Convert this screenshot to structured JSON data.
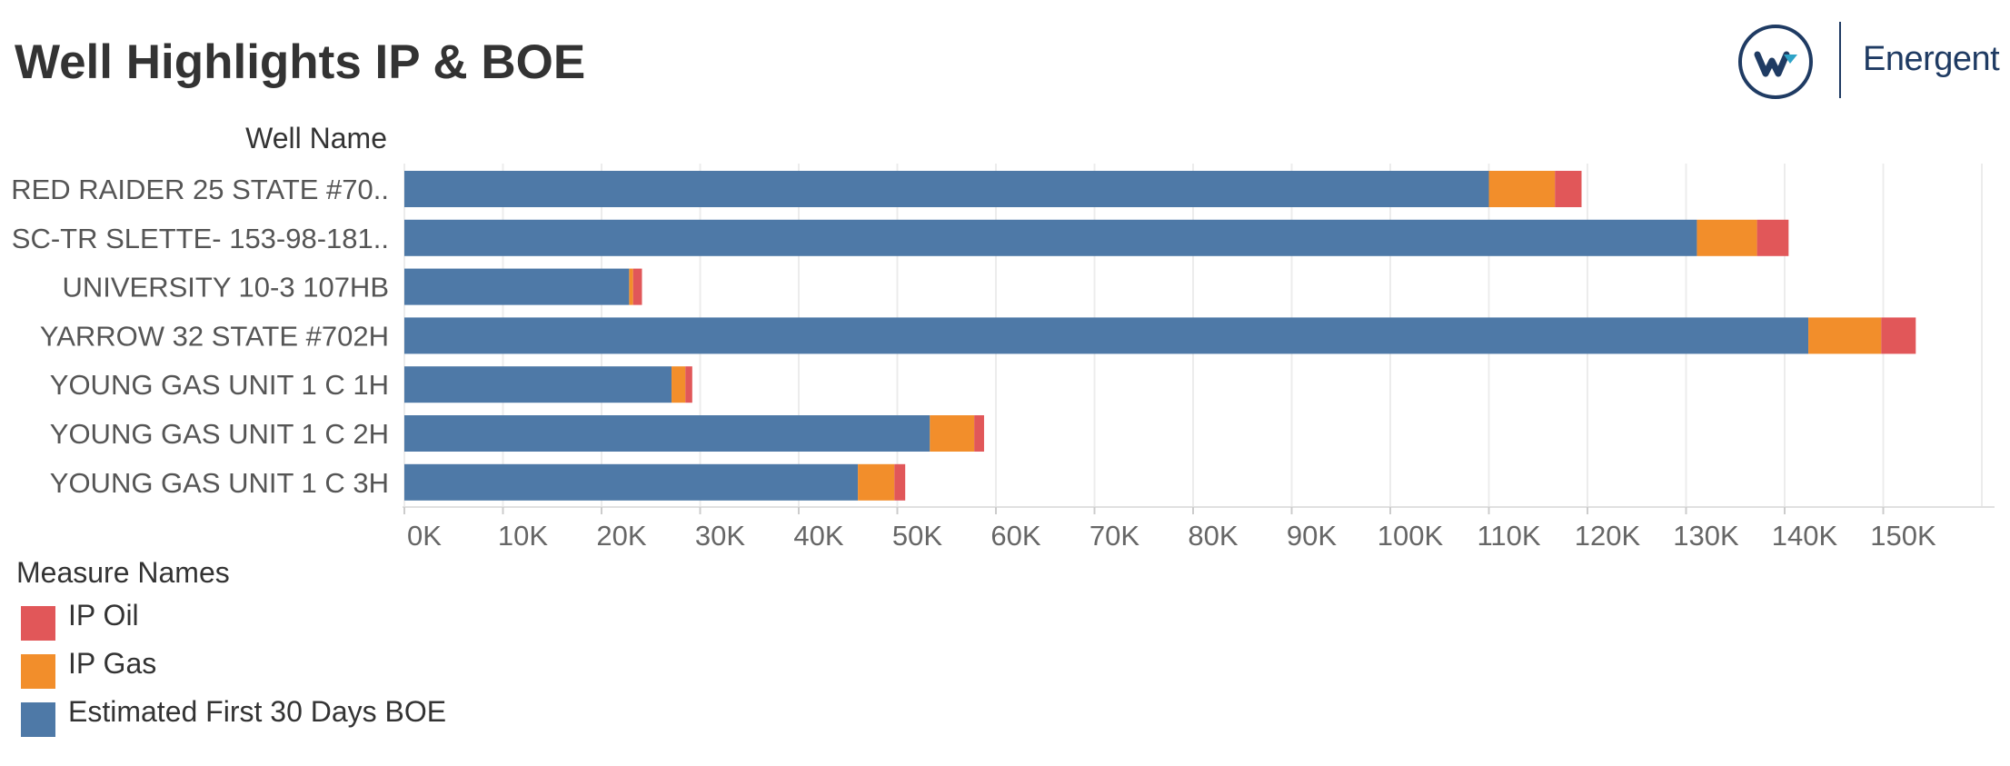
{
  "header": {
    "title": "Well Highlights IP & BOE",
    "logo_text": "Energent"
  },
  "colors": {
    "boe": "#4e79a7",
    "gas": "#f28e2b",
    "oil": "#e15759",
    "logo": "#1f3b63"
  },
  "legend": {
    "title": "Measure Names",
    "items": [
      {
        "label": "IP Oil",
        "color": "#e15759"
      },
      {
        "label": "IP Gas",
        "color": "#f28e2b"
      },
      {
        "label": "Estimated First 30 Days BOE",
        "color": "#4e79a7"
      }
    ]
  },
  "chart_data": {
    "type": "bar",
    "orientation": "horizontal",
    "stacked": true,
    "title": "Well Highlights IP & BOE",
    "category_axis_label": "Well Name",
    "categories": [
      "RED RAIDER 25 STATE #70..",
      "SC-TR SLETTE- 153-98-181..",
      "UNIVERSITY 10-3 107HB",
      "YARROW 32 STATE #702H",
      "YOUNG GAS UNIT 1 C  1H",
      "YOUNG GAS UNIT 1 C  2H",
      "YOUNG GAS UNIT 1 C  3H"
    ],
    "series": [
      {
        "name": "Estimated First 30 Days BOE",
        "color": "#4e79a7",
        "values": [
          110000,
          131100,
          22800,
          142400,
          27100,
          53300,
          46000
        ]
      },
      {
        "name": "IP Gas",
        "color": "#f28e2b",
        "values": [
          6700,
          6100,
          400,
          7400,
          1400,
          4500,
          3700
        ]
      },
      {
        "name": "IP Oil",
        "color": "#e15759",
        "values": [
          2700,
          3200,
          900,
          3500,
          700,
          1000,
          1100
        ]
      }
    ],
    "x_ticks": [
      "0K",
      "10K",
      "20K",
      "30K",
      "40K",
      "50K",
      "60K",
      "70K",
      "80K",
      "90K",
      "100K",
      "110K",
      "120K",
      "130K",
      "140K",
      "150K"
    ],
    "xlim": [
      0,
      160000
    ],
    "grid": true
  }
}
